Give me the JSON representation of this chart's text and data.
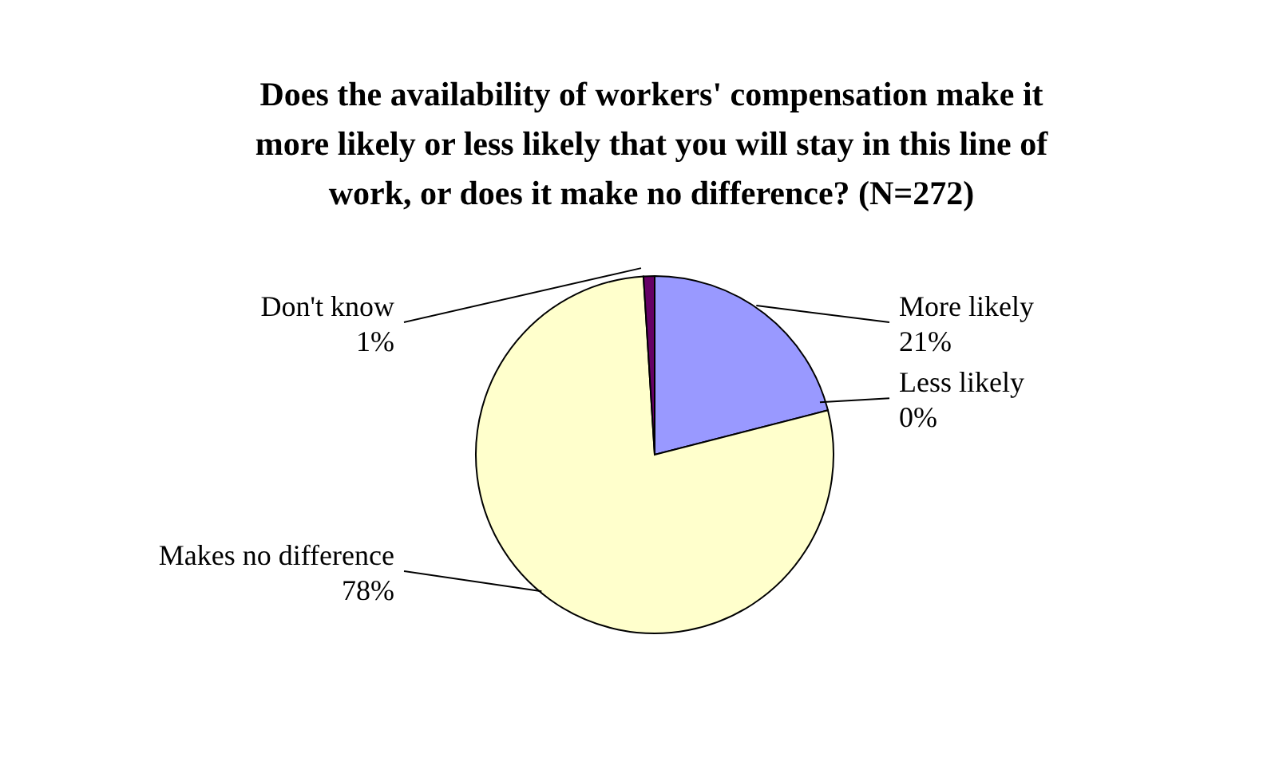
{
  "chart_data": {
    "type": "pie",
    "title": "Does the availability of workers' compensation make it more likely or less likely that you will stay in this line of work, or does it make no difference?  (N=272)",
    "categories": [
      "More likely",
      "Less likely",
      "Makes no difference",
      "Don't know"
    ],
    "values": [
      21,
      0,
      78,
      1
    ],
    "value_labels": [
      "21%",
      "0%",
      "78%",
      "1%"
    ],
    "colors": [
      "#9999ff",
      "#993366",
      "#ffffcc",
      "#660066"
    ]
  }
}
